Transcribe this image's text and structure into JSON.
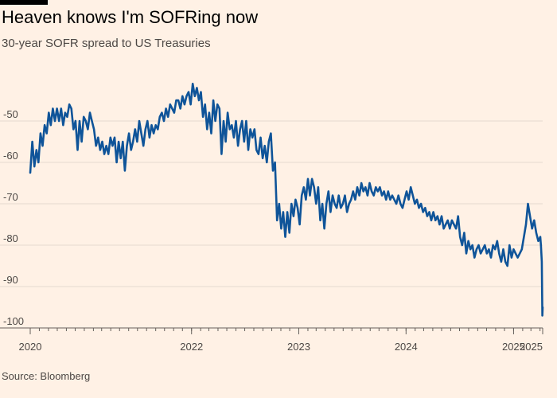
{
  "header": {
    "title": "Heaven knows I'm SOFRing now",
    "subtitle": "30-year SOFR spread to US Treasuries"
  },
  "footer": {
    "source": "Source: Bloomberg"
  },
  "colors": {
    "background": "#fff1e5",
    "line": "#0f5499",
    "grid": "#e6d9ce"
  },
  "chart_data": {
    "type": "line",
    "title": "Heaven knows I'm SOFRing now",
    "subtitle": "30-year SOFR spread to US Treasuries",
    "xlabel": "",
    "ylabel": "",
    "ylim": [
      -100,
      -40
    ],
    "yticks": [
      -50,
      -60,
      -70,
      -80,
      -90,
      -100
    ],
    "xlim": [
      "2020-07-01",
      "2025-04-10"
    ],
    "xticks": [
      {
        "date": "2020-07-01",
        "label": "2020"
      },
      {
        "date": "2022-01-01",
        "label": "2022"
      },
      {
        "date": "2023-01-01",
        "label": "2023"
      },
      {
        "date": "2024-01-01",
        "label": "2024"
      },
      {
        "date": "2025-01-01",
        "label": "2025"
      },
      {
        "date": "2025-04-10",
        "label": "2025"
      }
    ],
    "grid": true,
    "legend": "none",
    "series": [
      {
        "x": [
          "2020-07-01",
          "2020-07-08",
          "2020-07-15",
          "2020-07-22",
          "2020-07-29",
          "2020-08-05",
          "2020-08-12",
          "2020-08-19",
          "2020-08-26",
          "2020-09-02",
          "2020-09-09",
          "2020-09-16",
          "2020-09-23",
          "2020-09-30",
          "2020-10-07",
          "2020-10-14",
          "2020-10-21",
          "2020-10-28",
          "2020-11-04",
          "2020-11-11",
          "2020-11-18",
          "2020-11-25",
          "2020-12-02",
          "2020-12-09",
          "2020-12-16",
          "2020-12-23",
          "2020-12-30",
          "2021-01-06",
          "2021-01-13",
          "2021-01-20",
          "2021-01-27",
          "2021-02-03",
          "2021-02-10",
          "2021-02-17",
          "2021-02-24",
          "2021-03-03",
          "2021-03-10",
          "2021-03-17",
          "2021-03-24",
          "2021-03-31",
          "2021-04-07",
          "2021-04-14",
          "2021-04-21",
          "2021-04-28",
          "2021-05-05",
          "2021-05-12",
          "2021-05-19",
          "2021-05-26",
          "2021-06-02",
          "2021-06-09",
          "2021-06-16",
          "2021-06-23",
          "2021-06-30",
          "2021-07-07",
          "2021-07-14",
          "2021-07-21",
          "2021-07-28",
          "2021-08-04",
          "2021-08-11",
          "2021-08-18",
          "2021-08-25",
          "2021-09-01",
          "2021-09-08",
          "2021-09-15",
          "2021-09-22",
          "2021-09-29",
          "2021-10-06",
          "2021-10-13",
          "2021-10-20",
          "2021-10-27",
          "2021-11-03",
          "2021-11-10",
          "2021-11-17",
          "2021-11-24",
          "2021-12-01",
          "2021-12-08",
          "2021-12-15",
          "2021-12-22",
          "2021-12-29",
          "2022-01-05",
          "2022-01-12",
          "2022-01-19",
          "2022-01-26",
          "2022-02-02",
          "2022-02-09",
          "2022-02-16",
          "2022-02-23",
          "2022-03-02",
          "2022-03-09",
          "2022-03-16",
          "2022-03-23",
          "2022-03-30",
          "2022-04-06",
          "2022-04-13",
          "2022-04-20",
          "2022-04-27",
          "2022-05-04",
          "2022-05-11",
          "2022-05-18",
          "2022-05-25",
          "2022-06-01",
          "2022-06-08",
          "2022-06-15",
          "2022-06-22",
          "2022-06-29",
          "2022-07-06",
          "2022-07-13",
          "2022-07-20",
          "2022-07-27",
          "2022-08-03",
          "2022-08-10",
          "2022-08-17",
          "2022-08-24",
          "2022-08-31",
          "2022-09-07",
          "2022-09-14",
          "2022-09-21",
          "2022-09-28",
          "2022-10-05",
          "2022-10-12",
          "2022-10-19",
          "2022-10-26",
          "2022-11-02",
          "2022-11-09",
          "2022-11-16",
          "2022-11-23",
          "2022-11-30",
          "2022-12-07",
          "2022-12-14",
          "2022-12-21",
          "2022-12-28",
          "2023-01-04",
          "2023-01-11",
          "2023-01-18",
          "2023-01-25",
          "2023-02-01",
          "2023-02-08",
          "2023-02-15",
          "2023-02-22",
          "2023-03-01",
          "2023-03-08",
          "2023-03-15",
          "2023-03-22",
          "2023-03-29",
          "2023-04-05",
          "2023-04-12",
          "2023-04-19",
          "2023-04-26",
          "2023-05-03",
          "2023-05-10",
          "2023-05-17",
          "2023-05-24",
          "2023-05-31",
          "2023-06-07",
          "2023-06-14",
          "2023-06-21",
          "2023-06-28",
          "2023-07-05",
          "2023-07-12",
          "2023-07-19",
          "2023-07-26",
          "2023-08-02",
          "2023-08-09",
          "2023-08-16",
          "2023-08-23",
          "2023-08-30",
          "2023-09-06",
          "2023-09-13",
          "2023-09-20",
          "2023-09-27",
          "2023-10-04",
          "2023-10-11",
          "2023-10-18",
          "2023-10-25",
          "2023-11-01",
          "2023-11-08",
          "2023-11-15",
          "2023-11-22",
          "2023-11-29",
          "2023-12-06",
          "2023-12-13",
          "2023-12-20",
          "2023-12-27",
          "2024-01-03",
          "2024-01-10",
          "2024-01-17",
          "2024-01-24",
          "2024-01-31",
          "2024-02-07",
          "2024-02-14",
          "2024-02-21",
          "2024-02-28",
          "2024-03-06",
          "2024-03-13",
          "2024-03-20",
          "2024-03-27",
          "2024-04-03",
          "2024-04-10",
          "2024-04-17",
          "2024-04-24",
          "2024-05-01",
          "2024-05-08",
          "2024-05-15",
          "2024-05-22",
          "2024-05-29",
          "2024-06-05",
          "2024-06-12",
          "2024-06-19",
          "2024-06-26",
          "2024-07-03",
          "2024-07-10",
          "2024-07-17",
          "2024-07-24",
          "2024-07-31",
          "2024-08-07",
          "2024-08-14",
          "2024-08-21",
          "2024-08-28",
          "2024-09-04",
          "2024-09-11",
          "2024-09-18",
          "2024-09-25",
          "2024-10-02",
          "2024-10-09",
          "2024-10-16",
          "2024-10-23",
          "2024-10-30",
          "2024-11-06",
          "2024-11-13",
          "2024-11-20",
          "2024-11-27",
          "2024-12-04",
          "2024-12-11",
          "2024-12-18",
          "2024-12-25",
          "2025-01-01",
          "2025-01-08",
          "2025-01-15",
          "2025-01-22",
          "2025-01-29",
          "2025-02-05",
          "2025-02-12",
          "2025-02-19",
          "2025-02-26",
          "2025-03-05",
          "2025-03-12",
          "2025-03-19",
          "2025-03-26",
          "2025-04-02",
          "2025-04-04",
          "2025-04-07",
          "2025-04-09",
          "2025-04-10"
        ],
        "y": [
          -62.5,
          -55,
          -61,
          -57,
          -60,
          -53,
          -56,
          -51,
          -53,
          -48,
          -51,
          -47,
          -50,
          -47,
          -50,
          -47,
          -51,
          -48,
          -49,
          -46,
          -47,
          -52,
          -50,
          -57,
          -50,
          -55,
          -49,
          -50,
          -52,
          -48,
          -50,
          -52,
          -56,
          -54,
          -57,
          -55,
          -58,
          -56,
          -58,
          -54,
          -56,
          -54,
          -60,
          -55,
          -59,
          -55,
          -62,
          -56,
          -53,
          -57,
          -55,
          -52,
          -55,
          -50,
          -53,
          -56,
          -52,
          -50,
          -54,
          -51,
          -53,
          -51,
          -52,
          -49,
          -48,
          -50,
          -47,
          -49,
          -46,
          -47,
          -48,
          -45,
          -45,
          -47,
          -44,
          -46,
          -44,
          -43,
          -46,
          -41,
          -44,
          -42,
          -45,
          -43,
          -49,
          -46,
          -52,
          -48,
          -53,
          -45,
          -50,
          -46,
          -47,
          -58,
          -50,
          -55,
          -48,
          -52,
          -51,
          -54,
          -50,
          -56,
          -52,
          -50,
          -55,
          -50,
          -57,
          -52,
          -54,
          -52,
          -57,
          -58,
          -54,
          -59,
          -56,
          -60,
          -55,
          -53,
          -62,
          -60,
          -74,
          -70,
          -76,
          -72,
          -78,
          -72,
          -77,
          -70,
          -73,
          -69,
          -71,
          -75,
          -68,
          -66,
          -69,
          -64,
          -68,
          -64,
          -66,
          -70,
          -66,
          -74,
          -70,
          -76,
          -70,
          -67,
          -72,
          -68,
          -70,
          -71,
          -68,
          -71,
          -70,
          -68,
          -72,
          -70,
          -69,
          -67,
          -69,
          -66,
          -68,
          -65,
          -67,
          -66,
          -68,
          -65,
          -67,
          -68,
          -66,
          -67,
          -66,
          -68,
          -67,
          -69,
          -67,
          -69,
          -68,
          -69,
          -70,
          -68,
          -70,
          -71,
          -69,
          -67,
          -69,
          -66,
          -68,
          -70,
          -69,
          -71,
          -70,
          -72,
          -71,
          -73,
          -72,
          -74,
          -72,
          -74,
          -73,
          -75,
          -73,
          -76,
          -75,
          -74,
          -76,
          -74,
          -75,
          -76,
          -73,
          -78,
          -80,
          -77,
          -82,
          -79,
          -81,
          -80,
          -83,
          -81,
          -80,
          -82,
          -81,
          -80,
          -82,
          -81,
          -83,
          -80,
          -81,
          -79,
          -82,
          -84,
          -81,
          -84,
          -85,
          -80,
          -83,
          -81,
          -82,
          -83,
          -82,
          -81,
          -78,
          -75,
          -70,
          -73,
          -76,
          -74,
          -77,
          -79,
          -78,
          -80,
          -84,
          -97,
          -95
        ]
      }
    ]
  }
}
